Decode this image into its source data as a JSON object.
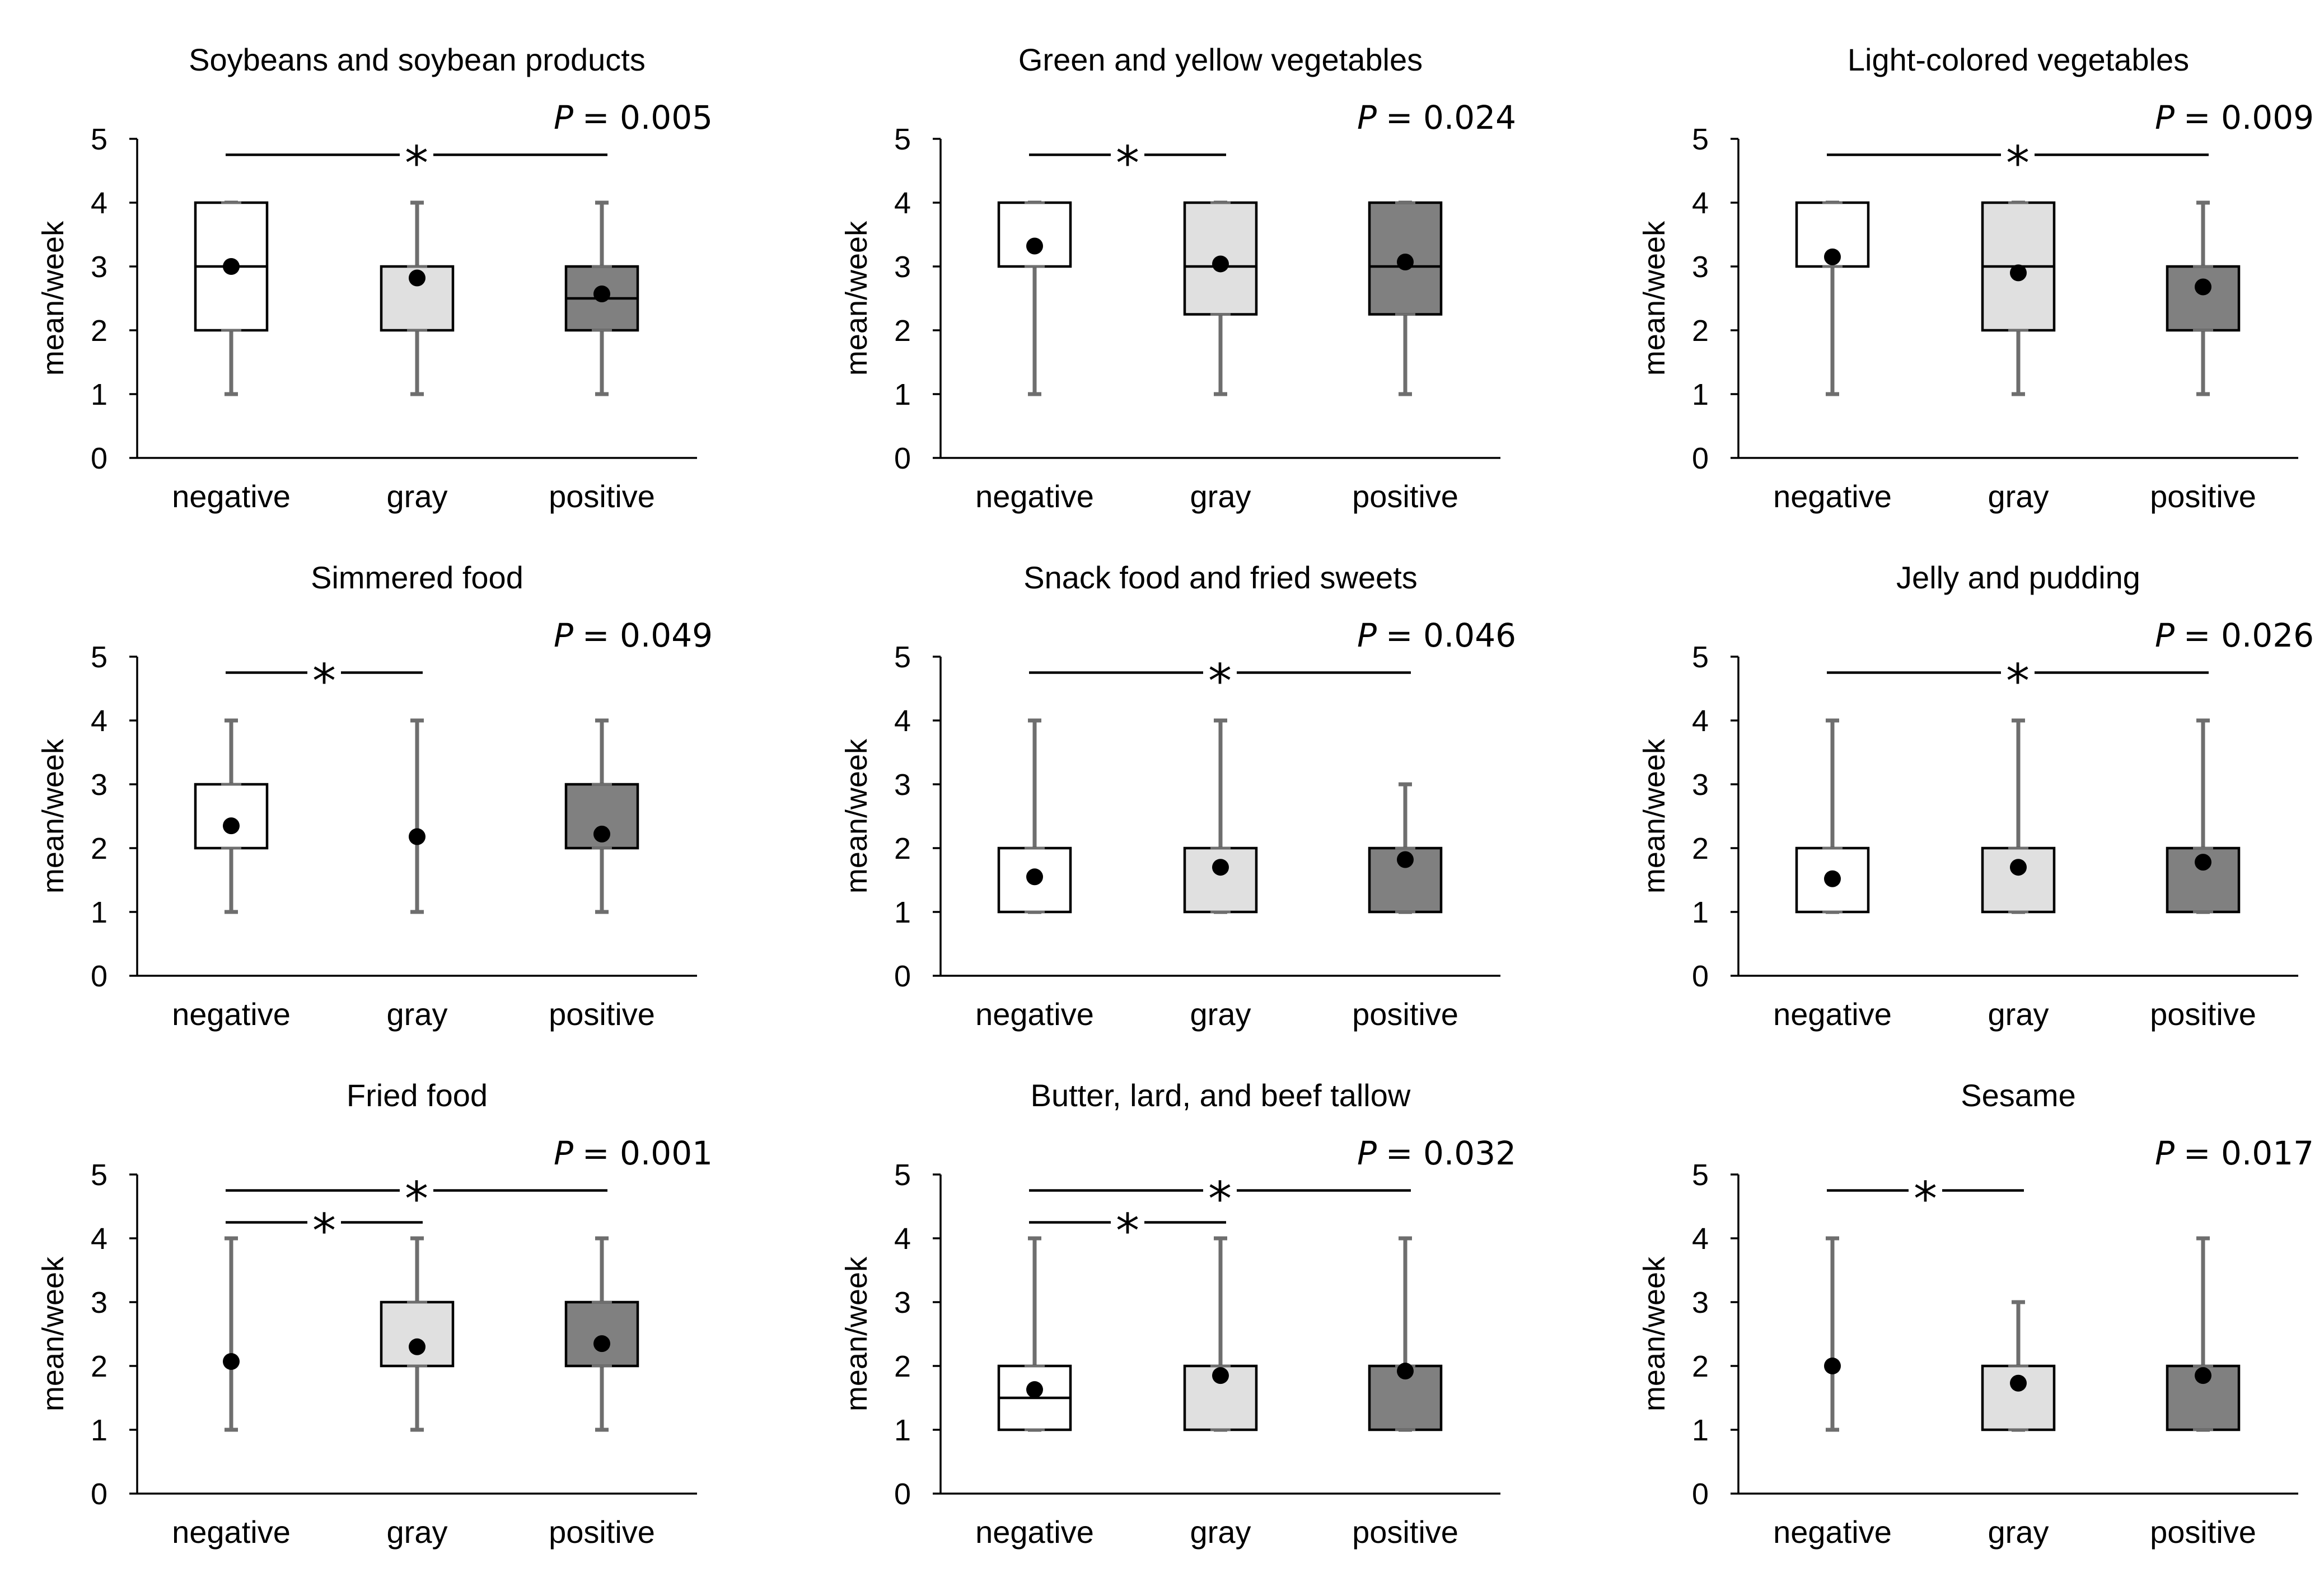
{
  "figure": {
    "ylabel": "mean/week",
    "ylim": [
      0,
      5
    ],
    "yticks": [
      "0",
      "1",
      "2",
      "3",
      "4",
      "5"
    ],
    "categories": [
      "negative",
      "gray",
      "positive"
    ],
    "colors": {
      "negative": "#ffffff",
      "gray": "#e0e0e0",
      "positive": "#808080",
      "whisker": "#6e6e6e",
      "line": "#000000",
      "mean": "#000000"
    }
  },
  "chart_data": [
    {
      "type": "box",
      "title": "Soybeans and soybean products",
      "p_label": "P",
      "p_value": "= 0.005",
      "categories": [
        "negative",
        "gray",
        "positive"
      ],
      "boxes": [
        {
          "min": 1,
          "q1": 2,
          "median": 3,
          "q3": 4,
          "max": 4,
          "mean": 3.0
        },
        {
          "min": 1,
          "q1": 2,
          "median": 3,
          "q3": 3,
          "max": 4,
          "mean": 2.82
        },
        {
          "min": 1,
          "q1": 2,
          "median": 2.5,
          "q3": 3,
          "max": 4,
          "mean": 2.57
        }
      ],
      "significance": [
        {
          "from": 0,
          "to": 2,
          "y": 4.75,
          "label": "*"
        }
      ]
    },
    {
      "type": "box",
      "title": "Green and yellow vegetables",
      "p_label": "P",
      "p_value": "= 0.024",
      "categories": [
        "negative",
        "gray",
        "positive"
      ],
      "boxes": [
        {
          "min": 1,
          "q1": 3,
          "median": 4,
          "q3": 4,
          "max": 4,
          "mean": 3.32
        },
        {
          "min": 1,
          "q1": 2.25,
          "median": 3,
          "q3": 4,
          "max": 4,
          "mean": 3.04
        },
        {
          "min": 1,
          "q1": 2.25,
          "median": 3,
          "q3": 4,
          "max": 4,
          "mean": 3.07
        }
      ],
      "significance": [
        {
          "from": 0,
          "to": 1,
          "y": 4.75,
          "label": "*"
        }
      ]
    },
    {
      "type": "box",
      "title": "Light-colored vegetables",
      "p_label": "P",
      "p_value": "= 0.009",
      "categories": [
        "negative",
        "gray",
        "positive"
      ],
      "boxes": [
        {
          "min": 1,
          "q1": 3,
          "median": 4,
          "q3": 4,
          "max": 4,
          "mean": 3.15
        },
        {
          "min": 1,
          "q1": 2,
          "median": 3,
          "q3": 4,
          "max": 4,
          "mean": 2.9
        },
        {
          "min": 1,
          "q1": 2,
          "median": 3,
          "q3": 3,
          "max": 4,
          "mean": 2.68
        }
      ],
      "significance": [
        {
          "from": 0,
          "to": 2,
          "y": 4.75,
          "label": "*"
        }
      ]
    },
    {
      "type": "box",
      "title": "Simmered food",
      "p_label": "P",
      "p_value": "= 0.049",
      "categories": [
        "negative",
        "gray",
        "positive"
      ],
      "boxes": [
        {
          "min": 1,
          "q1": 2,
          "median": 2,
          "q3": 3,
          "max": 4,
          "mean": 2.35
        },
        {
          "min": 1,
          "q1": 2,
          "median": 2,
          "q3": 2,
          "max": 4,
          "mean": 2.18
        },
        {
          "min": 1,
          "q1": 2,
          "median": 2,
          "q3": 3,
          "max": 4,
          "mean": 2.22
        }
      ],
      "significance": [
        {
          "from": 0,
          "to": 1,
          "y": 4.75,
          "label": "*"
        }
      ]
    },
    {
      "type": "box",
      "title": "Snack food and fried sweets",
      "p_label": "P",
      "p_value": "= 0.046",
      "categories": [
        "negative",
        "gray",
        "positive"
      ],
      "boxes": [
        {
          "min": 1,
          "q1": 1,
          "median": 1,
          "q3": 2,
          "max": 4,
          "mean": 1.55
        },
        {
          "min": 1,
          "q1": 1,
          "median": 2,
          "q3": 2,
          "max": 4,
          "mean": 1.7
        },
        {
          "min": 1,
          "q1": 1,
          "median": 2,
          "q3": 2,
          "max": 3,
          "mean": 1.82
        }
      ],
      "significance": [
        {
          "from": 0,
          "to": 2,
          "y": 4.75,
          "label": "*"
        }
      ]
    },
    {
      "type": "box",
      "title": "Jelly and pudding",
      "p_label": "P",
      "p_value": "= 0.026",
      "categories": [
        "negative",
        "gray",
        "positive"
      ],
      "boxes": [
        {
          "min": 1,
          "q1": 1,
          "median": 1,
          "q3": 2,
          "max": 4,
          "mean": 1.52
        },
        {
          "min": 1,
          "q1": 1,
          "median": 2,
          "q3": 2,
          "max": 4,
          "mean": 1.7
        },
        {
          "min": 1,
          "q1": 1,
          "median": 2,
          "q3": 2,
          "max": 4,
          "mean": 1.78
        }
      ],
      "significance": [
        {
          "from": 0,
          "to": 2,
          "y": 4.75,
          "label": "*"
        }
      ]
    },
    {
      "type": "box",
      "title": "Fried food",
      "p_label": "P",
      "p_value": "= 0.001",
      "categories": [
        "negative",
        "gray",
        "positive"
      ],
      "boxes": [
        {
          "min": 1,
          "q1": 2,
          "median": 2,
          "q3": 2,
          "max": 4,
          "mean": 2.07
        },
        {
          "min": 1,
          "q1": 2,
          "median": 2,
          "q3": 3,
          "max": 4,
          "mean": 2.3
        },
        {
          "min": 1,
          "q1": 2,
          "median": 2,
          "q3": 3,
          "max": 4,
          "mean": 2.35
        }
      ],
      "significance": [
        {
          "from": 0,
          "to": 2,
          "y": 4.75,
          "label": "*"
        },
        {
          "from": 0,
          "to": 1,
          "y": 4.25,
          "label": "*"
        }
      ]
    },
    {
      "type": "box",
      "title": "Butter, lard, and beef tallow",
      "p_label": "P",
      "p_value": "= 0.032",
      "categories": [
        "negative",
        "gray",
        "positive"
      ],
      "boxes": [
        {
          "min": 1,
          "q1": 1,
          "median": 1.5,
          "q3": 2,
          "max": 4,
          "mean": 1.63
        },
        {
          "min": 1,
          "q1": 1,
          "median": 2,
          "q3": 2,
          "max": 4,
          "mean": 1.85
        },
        {
          "min": 1,
          "q1": 1,
          "median": 2,
          "q3": 2,
          "max": 4,
          "mean": 1.92
        }
      ],
      "significance": [
        {
          "from": 0,
          "to": 2,
          "y": 4.75,
          "label": "*"
        },
        {
          "from": 0,
          "to": 1,
          "y": 4.25,
          "label": "*"
        }
      ]
    },
    {
      "type": "box",
      "title": "Sesame",
      "p_label": "P",
      "p_value": "= 0.017",
      "categories": [
        "negative",
        "gray",
        "positive"
      ],
      "boxes": [
        {
          "min": 1,
          "q1": 2,
          "median": 2,
          "q3": 2,
          "max": 4,
          "mean": 2.0
        },
        {
          "min": 1,
          "q1": 1,
          "median": 2,
          "q3": 2,
          "max": 3,
          "mean": 1.73
        },
        {
          "min": 1,
          "q1": 1,
          "median": 2,
          "q3": 2,
          "max": 4,
          "mean": 1.85
        }
      ],
      "significance": [
        {
          "from": 0,
          "to": 1,
          "y": 4.75,
          "label": "*"
        }
      ]
    }
  ]
}
